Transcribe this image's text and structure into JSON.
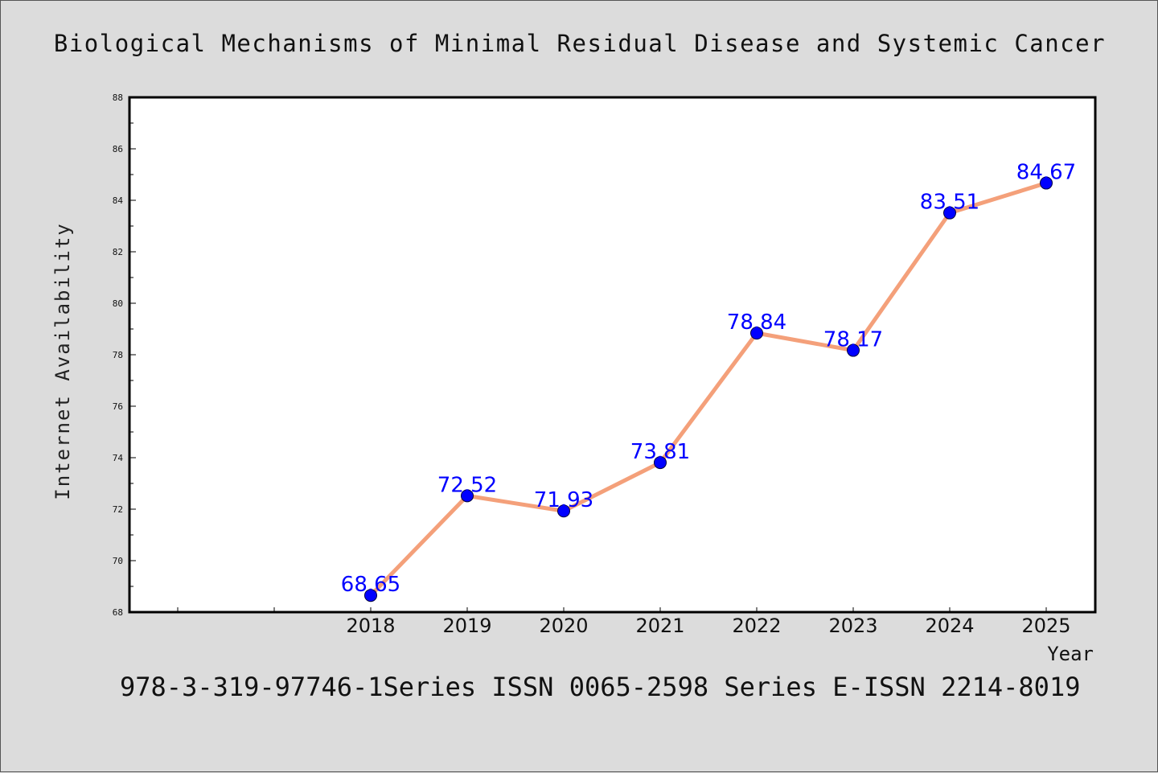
{
  "chart_data": {
    "type": "line",
    "title": "Biological Mechanisms of Minimal Residual Disease and Systemic Cancer",
    "xlabel": "Year",
    "ylabel": "Internet Availability",
    "categories": [
      "2018",
      "2019",
      "2020",
      "2021",
      "2022",
      "2023",
      "2024",
      "2025"
    ],
    "series": [
      {
        "values": [
          68.65,
          72.52,
          71.93,
          73.81,
          78.84,
          78.17,
          83.51,
          84.67
        ],
        "data_labels": [
          "68.65",
          "72.52",
          "71.93",
          "73.81",
          "78.84",
          "78.17",
          "83.51",
          "84.67"
        ]
      }
    ],
    "ylim": [
      68,
      88
    ],
    "yticks": [
      "68",
      "70",
      "72",
      "74",
      "76",
      "78",
      "80",
      "82",
      "84",
      "86",
      "88"
    ],
    "grid": false,
    "legend": "none"
  },
  "footnote": "978-3-319-97746-1Series ISSN 0065-2598 Series E-ISSN 2214-8019",
  "colors": {
    "background": "#dcdcdc",
    "plot_background": "#ffffff",
    "line": "#f4a07a",
    "marker": "#0000ff",
    "data_label": "#0000ff"
  }
}
